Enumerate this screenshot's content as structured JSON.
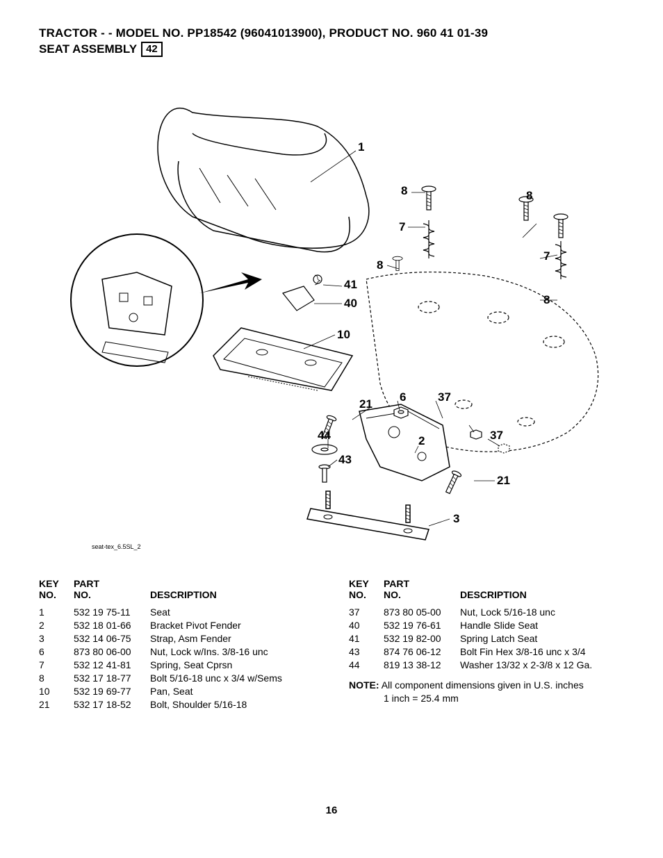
{
  "header": {
    "title": "TRACTOR - - MODEL NO. PP18542  (96041013900), PRODUCT NO. 960 41 01-39",
    "subtitle": "SEAT ASSEMBLY",
    "boxed": "42"
  },
  "diagram": {
    "label": "seat-tex_6.5SL_2",
    "callouts": [
      "1",
      "8",
      "8",
      "7",
      "7",
      "8",
      "8",
      "41",
      "40",
      "10",
      "21",
      "6",
      "37",
      "37",
      "44",
      "43",
      "2",
      "21",
      "3"
    ]
  },
  "parts_table": {
    "headers": {
      "key": "KEY\nNO.",
      "part": "PART\nNO.",
      "desc": "DESCRIPTION"
    },
    "left": [
      {
        "key": "1",
        "part": "532 19 75-11",
        "desc": "Seat"
      },
      {
        "key": "2",
        "part": "532 18 01-66",
        "desc": "Bracket Pivot Fender"
      },
      {
        "key": "3",
        "part": "532 14 06-75",
        "desc": "Strap, Asm Fender"
      },
      {
        "key": "6",
        "part": "873 80 06-00",
        "desc": "Nut, Lock w/Ins. 3/8-16 unc"
      },
      {
        "key": "7",
        "part": "532 12 41-81",
        "desc": "Spring, Seat Cprsn"
      },
      {
        "key": "8",
        "part": "532 17 18-77",
        "desc": "Bolt 5/16-18 unc x 3/4 w/Sems"
      },
      {
        "key": "10",
        "part": "532 19 69-77",
        "desc": "Pan, Seat"
      },
      {
        "key": "21",
        "part": "532 17 18-52",
        "desc": "Bolt, Shoulder 5/16-18"
      }
    ],
    "right": [
      {
        "key": "37",
        "part": "873 80 05-00",
        "desc": "Nut, Lock 5/16-18 unc"
      },
      {
        "key": "40",
        "part": "532 19 76-61",
        "desc": "Handle Slide Seat"
      },
      {
        "key": "41",
        "part": "532 19 82-00",
        "desc": "Spring Latch Seat"
      },
      {
        "key": "43",
        "part": "874 76 06-12",
        "desc": "Bolt Fin Hex 3/8-16 unc x 3/4"
      },
      {
        "key": "44",
        "part": "819 13 38-12",
        "desc": "Washer 13/32 x 2-3/8 x 12 Ga."
      }
    ]
  },
  "note": {
    "label": "NOTE:",
    "line1": "All component dimensions given in U.S. inches",
    "line2": "1 inch = 25.4 mm"
  },
  "page_number": "16",
  "style": {
    "text_color": "#000000",
    "background": "#ffffff",
    "title_fontsize": 17,
    "body_fontsize": 14,
    "callout_fontsize": 17
  }
}
